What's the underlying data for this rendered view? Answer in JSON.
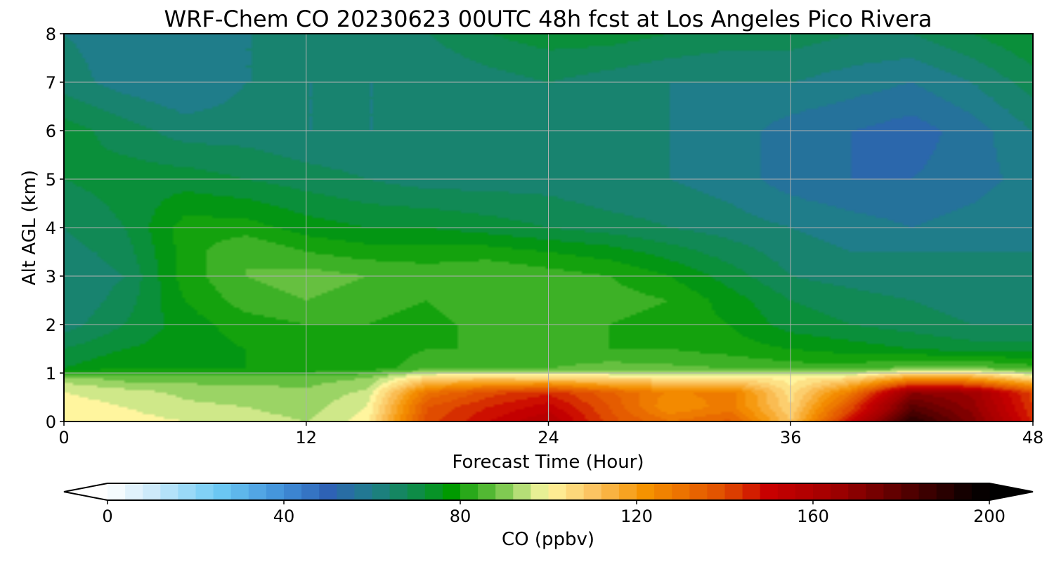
{
  "chart_data": {
    "type": "heatmap",
    "title": "WRF-Chem CO  20230623 00UTC 48h fcst at Los Angeles Pico Rivera",
    "xlabel": "Forecast Time (Hour)",
    "ylabel": "Alt AGL (km)",
    "xlim": [
      0,
      48
    ],
    "ylim": [
      0,
      8
    ],
    "xticks": [
      0,
      12,
      24,
      36,
      48
    ],
    "yticks": [
      0,
      1,
      2,
      3,
      4,
      5,
      6,
      7,
      8
    ],
    "grid": true,
    "colorbar": {
      "label": "CO  (ppbv)",
      "range": [
        0,
        200
      ],
      "ticks": [
        0,
        40,
        80,
        120,
        160,
        200
      ],
      "extend": "both",
      "color_stops": [
        {
          "value": 0,
          "color": "#ffffff"
        },
        {
          "value": 10,
          "color": "#cdeafa"
        },
        {
          "value": 25,
          "color": "#6ecbf5"
        },
        {
          "value": 40,
          "color": "#3f8ed8"
        },
        {
          "value": 50,
          "color": "#2e62b5"
        },
        {
          "value": 60,
          "color": "#1f7d8a"
        },
        {
          "value": 72,
          "color": "#0a8f3a"
        },
        {
          "value": 78,
          "color": "#009a00"
        },
        {
          "value": 88,
          "color": "#66c040"
        },
        {
          "value": 96,
          "color": "#cfe889"
        },
        {
          "value": 100,
          "color": "#fff59e"
        },
        {
          "value": 110,
          "color": "#fbc462"
        },
        {
          "value": 122,
          "color": "#f59200"
        },
        {
          "value": 140,
          "color": "#e04c00"
        },
        {
          "value": 150,
          "color": "#c80000"
        },
        {
          "value": 165,
          "color": "#a00000"
        },
        {
          "value": 180,
          "color": "#5a0000"
        },
        {
          "value": 195,
          "color": "#100000"
        },
        {
          "value": 200,
          "color": "#000000"
        }
      ]
    },
    "x": [
      0,
      3,
      6,
      9,
      12,
      15,
      18,
      21,
      24,
      27,
      30,
      33,
      36,
      39,
      42,
      45,
      48
    ],
    "y": [
      0,
      0.3,
      0.6,
      0.9,
      1.1,
      1.5,
      2,
      2.5,
      3,
      3.5,
      4,
      5,
      6,
      7,
      8
    ],
    "z": [
      [
        100,
        100,
        98,
        96,
        94,
        100,
        140,
        150,
        158,
        140,
        130,
        135,
        110,
        150,
        190,
        172,
        145
      ],
      [
        100,
        98,
        95,
        94,
        92,
        98,
        138,
        146,
        152,
        138,
        122,
        128,
        106,
        140,
        180,
        168,
        142
      ],
      [
        98,
        96,
        93,
        92,
        91,
        95,
        130,
        140,
        145,
        135,
        125,
        128,
        104,
        128,
        170,
        165,
        140
      ],
      [
        92,
        88,
        88,
        88,
        88,
        90,
        106,
        108,
        106,
        104,
        104,
        104,
        100,
        105,
        120,
        118,
        104
      ],
      [
        74,
        78,
        78,
        78,
        78,
        80,
        84,
        85,
        86,
        88,
        87,
        86,
        84,
        84,
        88,
        88,
        84
      ],
      [
        70,
        74,
        76,
        78,
        80,
        80,
        82,
        82,
        82,
        82,
        82,
        80,
        78,
        76,
        74,
        72,
        72
      ],
      [
        64,
        70,
        76,
        80,
        82,
        82,
        80,
        84,
        84,
        82,
        80,
        78,
        72,
        70,
        68,
        66,
        66
      ],
      [
        62,
        68,
        78,
        84,
        86,
        84,
        82,
        86,
        86,
        84,
        82,
        76,
        70,
        68,
        66,
        64,
        64
      ],
      [
        62,
        66,
        80,
        86,
        88,
        86,
        84,
        86,
        84,
        82,
        78,
        72,
        66,
        64,
        62,
        62,
        62
      ],
      [
        64,
        68,
        80,
        86,
        82,
        80,
        80,
        80,
        78,
        76,
        72,
        68,
        64,
        62,
        62,
        62,
        62
      ],
      [
        66,
        70,
        80,
        80,
        76,
        74,
        74,
        72,
        70,
        68,
        66,
        64,
        62,
        60,
        58,
        60,
        62
      ],
      [
        70,
        72,
        72,
        70,
        68,
        66,
        64,
        64,
        64,
        62,
        62,
        60,
        56,
        54,
        54,
        56,
        60
      ],
      [
        72,
        68,
        64,
        64,
        62,
        62,
        62,
        62,
        62,
        62,
        62,
        60,
        56,
        54,
        52,
        56,
        62
      ],
      [
        64,
        60,
        58,
        62,
        62,
        62,
        62,
        64,
        66,
        64,
        62,
        62,
        62,
        60,
        58,
        62,
        68
      ],
      [
        62,
        60,
        60,
        62,
        62,
        64,
        66,
        70,
        72,
        72,
        70,
        68,
        68,
        66,
        66,
        70,
        74
      ]
    ]
  }
}
